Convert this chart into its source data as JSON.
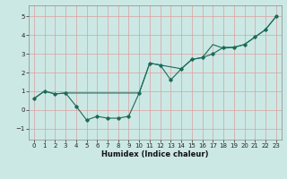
{
  "xlabel": "Humidex (Indice chaleur)",
  "bg_color": "#cce8e4",
  "grid_color": "#d9a0a0",
  "line_color": "#1a6b5a",
  "xlim": [
    -0.5,
    23.5
  ],
  "ylim": [
    -1.6,
    5.6
  ],
  "xticks": [
    0,
    1,
    2,
    3,
    4,
    5,
    6,
    7,
    8,
    9,
    10,
    11,
    12,
    13,
    14,
    15,
    16,
    17,
    18,
    19,
    20,
    21,
    22,
    23
  ],
  "yticks": [
    -1,
    0,
    1,
    2,
    3,
    4,
    5
  ],
  "series1_x": [
    0,
    1,
    2,
    3,
    4,
    5,
    6,
    7,
    8,
    9,
    10,
    11,
    12,
    13,
    14,
    15,
    16,
    17,
    18,
    19,
    20,
    21,
    22,
    23
  ],
  "series1_y": [
    0.6,
    1.0,
    0.85,
    0.9,
    0.2,
    -0.55,
    -0.35,
    -0.45,
    -0.45,
    -0.35,
    0.9,
    2.5,
    2.4,
    1.6,
    2.2,
    2.7,
    2.8,
    3.0,
    3.35,
    3.35,
    3.5,
    3.9,
    4.3,
    5.0
  ],
  "series2_x": [
    0,
    1,
    2,
    3,
    10,
    11,
    12,
    14,
    15,
    16,
    17,
    18,
    19,
    20,
    21,
    22,
    23
  ],
  "series2_y": [
    0.6,
    1.0,
    0.85,
    0.9,
    0.9,
    2.5,
    2.4,
    2.2,
    2.7,
    2.8,
    3.5,
    3.3,
    3.35,
    3.5,
    3.9,
    4.3,
    5.0
  ],
  "xlabel_fontsize": 6.0,
  "tick_fontsize": 5.0
}
